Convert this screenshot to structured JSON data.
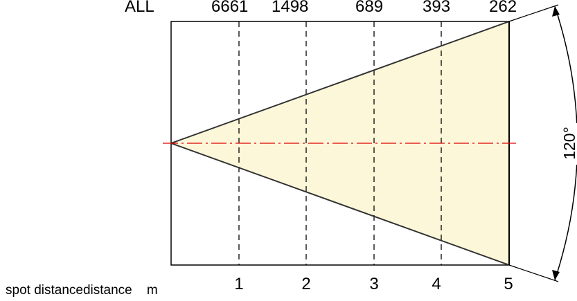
{
  "diagram": {
    "top_row": {
      "label": "ALL",
      "values": [
        "6661",
        "1498",
        "689",
        "393",
        "262"
      ]
    },
    "distance_ticks": [
      "1",
      "2",
      "3",
      "4",
      "5"
    ],
    "angle_label": "120°",
    "caption": "spot distancedistance    m",
    "colors": {
      "beam_fill": "#fdf7d9",
      "beam_outline": "#333333",
      "axis_line": "#e00000",
      "dashed_guides": "#000000",
      "frame": "#000000"
    }
  }
}
